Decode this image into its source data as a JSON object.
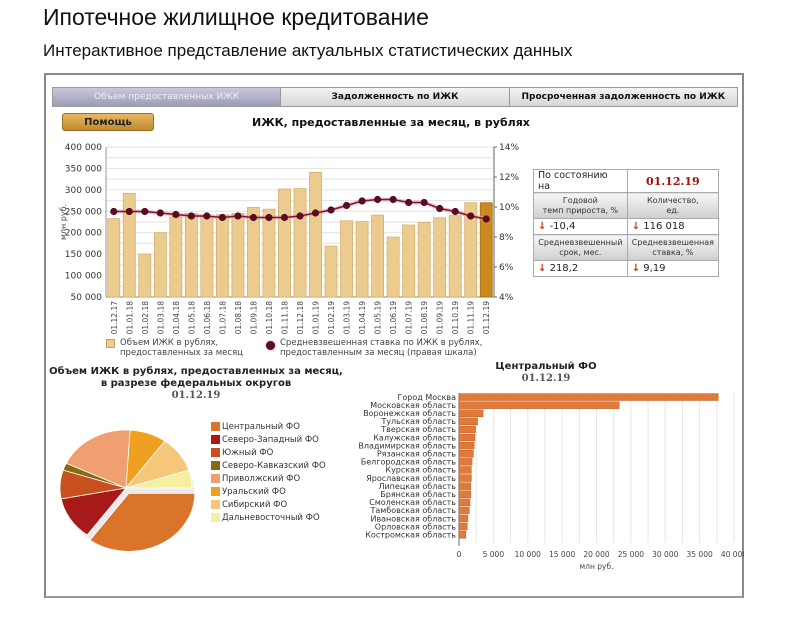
{
  "header": {
    "title": "Ипотечное жилищное кредитование",
    "subtitle": "Интерактивное представление актуальных статистических данных"
  },
  "tabs": [
    {
      "label": "Объем предоставленных ИЖК",
      "active": true
    },
    {
      "label": "Задолженность по ИЖК",
      "active": false
    },
    {
      "label": "Просроченная задолженность по ИЖК",
      "active": false
    }
  ],
  "help_button": {
    "label": "Помощь"
  },
  "stats": {
    "as_of_label": "По состоянию на",
    "as_of_date": "01.12.19",
    "growth_label_1": "Годовой",
    "growth_label_2": "темп прироста, %",
    "count_label_1": "Количество,",
    "count_label_2": "ед.",
    "growth_value": "-10,4",
    "count_value": "116 018",
    "term_label_1": "Средневзвешенный",
    "term_label_2": "срок, мес.",
    "rate_label_1": "Средневзвешенная",
    "rate_label_2": "ставка, %",
    "term_value": "218,2",
    "rate_value": "9,19",
    "down_arrow": "🡇"
  },
  "colors": {
    "bar": "#eccb8f",
    "bar_last": "#c98a1e",
    "rate_line": "#7a1a2a",
    "rate_dot": "#5a0a22",
    "region_bar": "#e07a3a",
    "date_red": "#a01010"
  },
  "chart_data": [
    {
      "type": "bar+line",
      "title": "ИЖК, предоставленные за месяц, в рублях",
      "ylabel": "млн руб.",
      "ylim": [
        50000,
        400000
      ],
      "y_ticks": [
        "50 000",
        "100 000",
        "150 000",
        "200 000",
        "250 000",
        "300 000",
        "350 000",
        "400 000"
      ],
      "y2lim": [
        4,
        14
      ],
      "y2_ticks": [
        "4%",
        "6%",
        "8%",
        "10%",
        "12%",
        "14%"
      ],
      "categories": [
        "01.12.17",
        "01.01.18",
        "01.02.18",
        "01.03.18",
        "01.04.18",
        "01.05.18",
        "01.06.18",
        "01.07.18",
        "01.08.18",
        "01.09.18",
        "01.10.18",
        "01.11.18",
        "01.12.18",
        "01.01.19",
        "01.02.19",
        "01.03.19",
        "01.04.19",
        "01.05.19",
        "01.06.19",
        "01.07.19",
        "01.08.19",
        "01.09.19",
        "01.10.19",
        "01.11.19",
        "01.12.19"
      ],
      "series": [
        {
          "name": "Объем ИЖК в рублях, предоставленных за месяц",
          "type": "bar",
          "values": [
            233000,
            292000,
            150000,
            200000,
            237000,
            245000,
            237000,
            242000,
            245000,
            259000,
            255000,
            302000,
            303000,
            341000,
            169000,
            228000,
            226000,
            241000,
            190000,
            218000,
            224000,
            235000,
            240000,
            270000,
            270000
          ]
        },
        {
          "name": "Средневзвешенная ставка по ИЖК в рублях, предоставленным за месяц (правая шкала)",
          "type": "line",
          "axis": "right",
          "values": [
            9.7,
            9.7,
            9.7,
            9.6,
            9.5,
            9.4,
            9.4,
            9.3,
            9.4,
            9.3,
            9.3,
            9.3,
            9.4,
            9.6,
            9.8,
            10.1,
            10.4,
            10.5,
            10.5,
            10.3,
            10.3,
            9.9,
            9.7,
            9.4,
            9.2
          ]
        }
      ],
      "legend": [
        {
          "line1": "Объем ИЖК в рублях,",
          "line2": "предоставленных за месяц"
        },
        {
          "line1": "Средневзвешенная ставка по ИЖК  в рублях,",
          "line2": "предоставленным за месяц (правая шкала)"
        }
      ],
      "grid": true
    },
    {
      "type": "pie",
      "title_line1": "Объем ИЖК в рублях, предоставленных за месяц,",
      "title_line2": "в разрезе федеральных округов",
      "date": "01.12.19",
      "labels": [
        "Центральный ФО",
        "Северо-Западный ФО",
        "Южный ФО",
        "Северо-Кавказский ФО",
        "Приволжский ФО",
        "Уральский ФО",
        "Сибирский ФО",
        "Дальневосточный ФО"
      ],
      "values": [
        35,
        12,
        8,
        2,
        19,
        9,
        10,
        5
      ],
      "colors": [
        "#d9742a",
        "#a81a1a",
        "#c8501e",
        "#8a6a10",
        "#f0a070",
        "#f0a020",
        "#f4c878",
        "#f4f0a0"
      ]
    },
    {
      "type": "bar",
      "orientation": "horizontal",
      "title": "Центральный ФО",
      "date": "01.12.19",
      "xlabel": "млн руб.",
      "xlim": [
        0,
        40000
      ],
      "x_ticks": [
        "0",
        "5 000",
        "10 000",
        "15 000",
        "20 000",
        "25 000",
        "30 000",
        "35 000",
        "40 000"
      ],
      "categories": [
        "Город Москва",
        "Московская область",
        "Воронежская область",
        "Тульская область",
        "Тверская область",
        "Калужская область",
        "Владимирская область",
        "Рязанская область",
        "Белгородская область",
        "Курская область",
        "Ярославская область",
        "Липецкая область",
        "Брянская область",
        "Смоленская область",
        "Тамбовская область",
        "Ивановская область",
        "Орловская область",
        "Костромская область"
      ],
      "values": [
        37700,
        23300,
        3500,
        2700,
        2400,
        2300,
        2200,
        2100,
        1900,
        1800,
        1800,
        1700,
        1700,
        1600,
        1500,
        1300,
        1200,
        1000
      ]
    }
  ]
}
